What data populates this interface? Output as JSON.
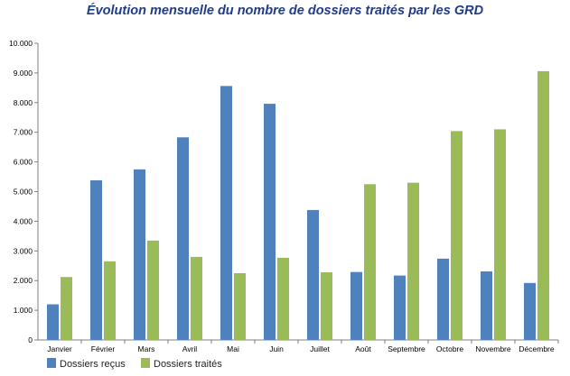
{
  "chart_data": {
    "type": "bar",
    "title": "Évolution mensuelle du nombre de dossiers traités par les GRD",
    "xlabel": "",
    "ylabel": "",
    "ylim": [
      0,
      10000
    ],
    "yticks": [
      0,
      1000,
      2000,
      3000,
      4000,
      5000,
      6000,
      7000,
      8000,
      9000,
      10000
    ],
    "ytick_labels": [
      "0",
      "1.000",
      "2.000",
      "3.000",
      "4.000",
      "5.000",
      "6.000",
      "7.000",
      "8.000",
      "9.000",
      "10.000"
    ],
    "grid": false,
    "legend_position": "bottom-left",
    "categories": [
      "Janvier",
      "Février",
      "Mars",
      "Avril",
      "Mai",
      "Juin",
      "Juillet",
      "Août",
      "Septembre",
      "Octobre",
      "Novembre",
      "Décembre"
    ],
    "series": [
      {
        "name": "Dossiers reçus",
        "color": "#4f81bd",
        "values": [
          1200,
          5380,
          5750,
          6830,
          8560,
          7960,
          4380,
          2290,
          2170,
          2740,
          2310,
          1920
        ]
      },
      {
        "name": "Dossiers traités",
        "color": "#9bbb59",
        "values": [
          2120,
          2650,
          3350,
          2800,
          2250,
          2770,
          2280,
          5250,
          5300,
          7040,
          7100,
          9060
        ]
      }
    ]
  }
}
